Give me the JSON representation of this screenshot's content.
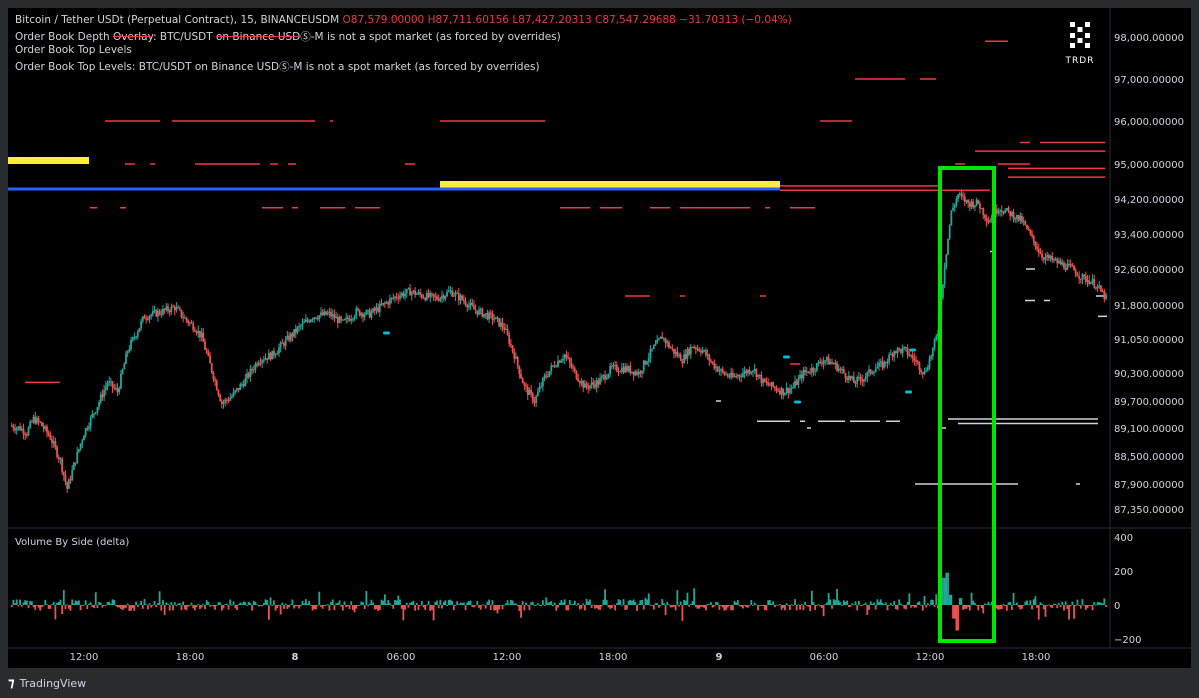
{
  "header": {
    "symbol": "Bitcoin / Tether USDt (Perpetual Contract), 15, BINANCEUSDM",
    "o_label": "O",
    "o_value": "87,579.00000",
    "h_label": "H",
    "h_value": "87,711.60156",
    "l_label": "L",
    "l_value": "87,427.20313",
    "c_label": "C",
    "c_value": "87,547.29688",
    "change": "−31.70313 (−0.04%)",
    "line2_pre": "Order Book Depth ",
    "line2_strike": "Overlay",
    "line2_mid": ": BTC/USDT ",
    "line2_strike2": "on Binance USD",
    "line2_post": "Ⓢ-M is not a spot market (as forced by overrides)",
    "line3": "Order Book Top Levels",
    "line4": "Order Book Top Levels: BTC/USDT on Binance USDⓈ-M is not a spot market (as forced by overrides)"
  },
  "logo": {
    "text": "TRDR"
  },
  "footer": {
    "brand": "TradingView"
  },
  "colors": {
    "background": "#000000",
    "frame": "#2a2b2f",
    "up": "#26a69a",
    "down": "#ef5350",
    "ask_levels": "#f23645",
    "bid_levels": "#d1d4dc",
    "yellow_band": "#ffeb3b",
    "blue_line": "#2962ff",
    "highlight_box": "#00e600",
    "axis_text": "#d1d4dc"
  },
  "chart_data": [
    {
      "type": "candlestick",
      "title": "",
      "y_tick_labels": [
        "98,000.00000",
        "97,000.00000",
        "96,000.00000",
        "95,000.00000",
        "94,200.00000",
        "93,400.00000",
        "92,600.00000",
        "91,800.00000",
        "91,050.00000",
        "90,300.00000",
        "89,700.00000",
        "89,100.00000",
        "88,500.00000",
        "87,900.00000",
        "87,350.00000"
      ],
      "x_tick_labels": [
        "12:00",
        "18:00",
        "8",
        "06:00",
        "12:00",
        "18:00",
        "9",
        "06:00",
        "12:00",
        "18:00"
      ],
      "ylim": [
        87000,
        98400
      ],
      "grid": false,
      "ohlc_anchor_closes": [
        [
          0,
          89150
        ],
        [
          6,
          89100
        ],
        [
          10,
          89000
        ],
        [
          14,
          89300
        ],
        [
          18,
          89200
        ],
        [
          24,
          88900
        ],
        [
          30,
          88400
        ],
        [
          34,
          87800
        ],
        [
          38,
          88300
        ],
        [
          44,
          89000
        ],
        [
          52,
          89600
        ],
        [
          58,
          90100
        ],
        [
          64,
          89900
        ],
        [
          70,
          90800
        ],
        [
          80,
          91550
        ],
        [
          90,
          91650
        ],
        [
          98,
          91750
        ],
        [
          104,
          91500
        ],
        [
          110,
          91300
        ],
        [
          114,
          91100
        ],
        [
          118,
          90600
        ],
        [
          126,
          89650
        ],
        [
          132,
          89800
        ],
        [
          140,
          90150
        ],
        [
          148,
          90600
        ],
        [
          156,
          90700
        ],
        [
          164,
          91000
        ],
        [
          172,
          91300
        ],
        [
          180,
          91550
        ],
        [
          190,
          91600
        ],
        [
          198,
          91400
        ],
        [
          206,
          91650
        ],
        [
          214,
          91600
        ],
        [
          222,
          91800
        ],
        [
          230,
          92000
        ],
        [
          238,
          92100
        ],
        [
          246,
          92000
        ],
        [
          254,
          91950
        ],
        [
          262,
          92100
        ],
        [
          270,
          91900
        ],
        [
          276,
          91700
        ],
        [
          282,
          91600
        ],
        [
          288,
          91500
        ],
        [
          294,
          91300
        ],
        [
          300,
          90700
        ],
        [
          306,
          90000
        ],
        [
          312,
          89700
        ],
        [
          318,
          90200
        ],
        [
          324,
          90500
        ],
        [
          330,
          90700
        ],
        [
          336,
          90300
        ],
        [
          342,
          90000
        ],
        [
          350,
          90100
        ],
        [
          358,
          90400
        ],
        [
          366,
          90400
        ],
        [
          374,
          90300
        ],
        [
          382,
          90800
        ],
        [
          388,
          91100
        ],
        [
          394,
          90800
        ],
        [
          400,
          90600
        ],
        [
          406,
          90900
        ],
        [
          412,
          90800
        ],
        [
          418,
          90500
        ],
        [
          424,
          90300
        ],
        [
          430,
          90200
        ],
        [
          436,
          90300
        ],
        [
          442,
          90400
        ],
        [
          448,
          90100
        ],
        [
          454,
          90000
        ],
        [
          460,
          89900
        ],
        [
          466,
          90000
        ],
        [
          472,
          90300
        ],
        [
          478,
          90400
        ],
        [
          484,
          90600
        ],
        [
          490,
          90500
        ],
        [
          496,
          90300
        ],
        [
          502,
          90100
        ],
        [
          508,
          90200
        ],
        [
          514,
          90400
        ],
        [
          520,
          90500
        ],
        [
          526,
          90800
        ],
        [
          532,
          90800
        ],
        [
          538,
          90600
        ],
        [
          544,
          90300
        ],
        [
          548,
          90700
        ],
        [
          552,
          91200
        ],
        [
          556,
          92700
        ],
        [
          560,
          93900
        ],
        [
          564,
          94300
        ],
        [
          570,
          94100
        ],
        [
          576,
          94100
        ],
        [
          582,
          93700
        ],
        [
          588,
          94000
        ],
        [
          596,
          93850
        ],
        [
          602,
          93700
        ],
        [
          608,
          93300
        ],
        [
          614,
          92900
        ],
        [
          620,
          92800
        ],
        [
          626,
          92700
        ],
        [
          632,
          92600
        ],
        [
          638,
          92400
        ],
        [
          642,
          92350
        ],
        [
          646,
          92250
        ],
        [
          652,
          91950
        ]
      ]
    },
    {
      "type": "bar",
      "title": "Volume By Side (delta)",
      "y_tick_labels": [
        "400",
        "200",
        "0",
        "−200"
      ],
      "ylim": [
        -250,
        430
      ],
      "note": "delta volume per 15-min bar; green positive, red negative",
      "highlight_values": [
        {
          "position": "post-spike",
          "values": [
            180,
            160,
            190,
            60,
            -80,
            -150,
            40
          ]
        }
      ]
    }
  ]
}
